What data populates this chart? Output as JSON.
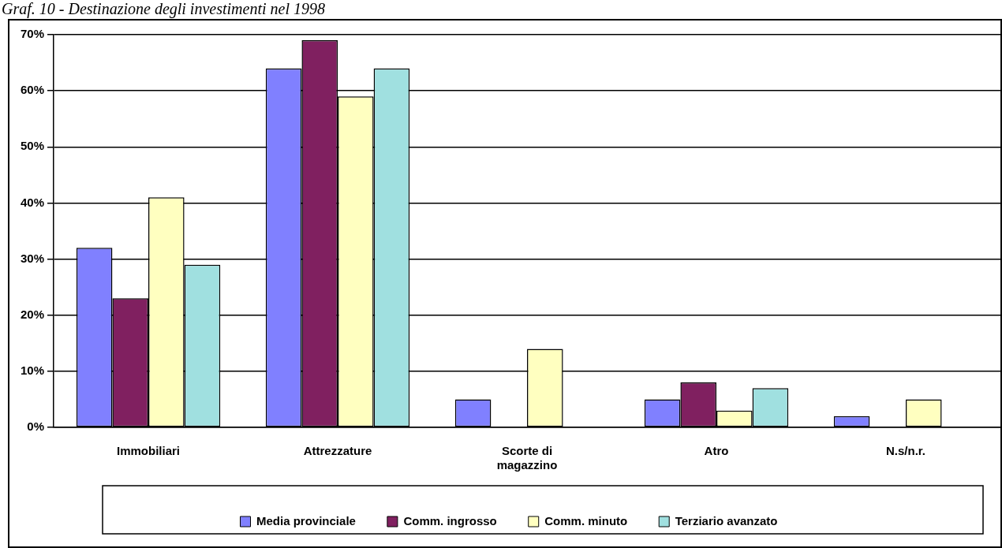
{
  "chart_data": {
    "type": "bar",
    "title": "Graf. 10 - Destinazione degli investimenti nel 1998",
    "categories": [
      "Immobiliari",
      "Attrezzature",
      "Scorte di magazzino",
      "Atro",
      "N.s/n.r."
    ],
    "series": [
      {
        "name": "Media provinciale",
        "color": "#8080ff",
        "values": [
          32,
          64,
          5,
          5,
          2
        ]
      },
      {
        "name": "Comm. ingrosso",
        "color": "#802060",
        "values": [
          23,
          69,
          0,
          8,
          0
        ]
      },
      {
        "name": "Comm. minuto",
        "color": "#ffffc0",
        "values": [
          41,
          59,
          14,
          3,
          5
        ]
      },
      {
        "name": "Terziario avanzato",
        "color": "#a0e0e0",
        "values": [
          29,
          64,
          0,
          7,
          0
        ]
      }
    ],
    "ylim": [
      0,
      70
    ],
    "yticks": [
      {
        "value": 0,
        "label": "0%"
      },
      {
        "value": 10,
        "label": "10%"
      },
      {
        "value": 20,
        "label": "20%"
      },
      {
        "value": 30,
        "label": "30%"
      },
      {
        "value": 40,
        "label": "40%"
      },
      {
        "value": 50,
        "label": "50%"
      },
      {
        "value": 60,
        "label": "60%"
      },
      {
        "value": 70,
        "label": "70%"
      }
    ],
    "grid": "y",
    "legend": "bottom"
  }
}
